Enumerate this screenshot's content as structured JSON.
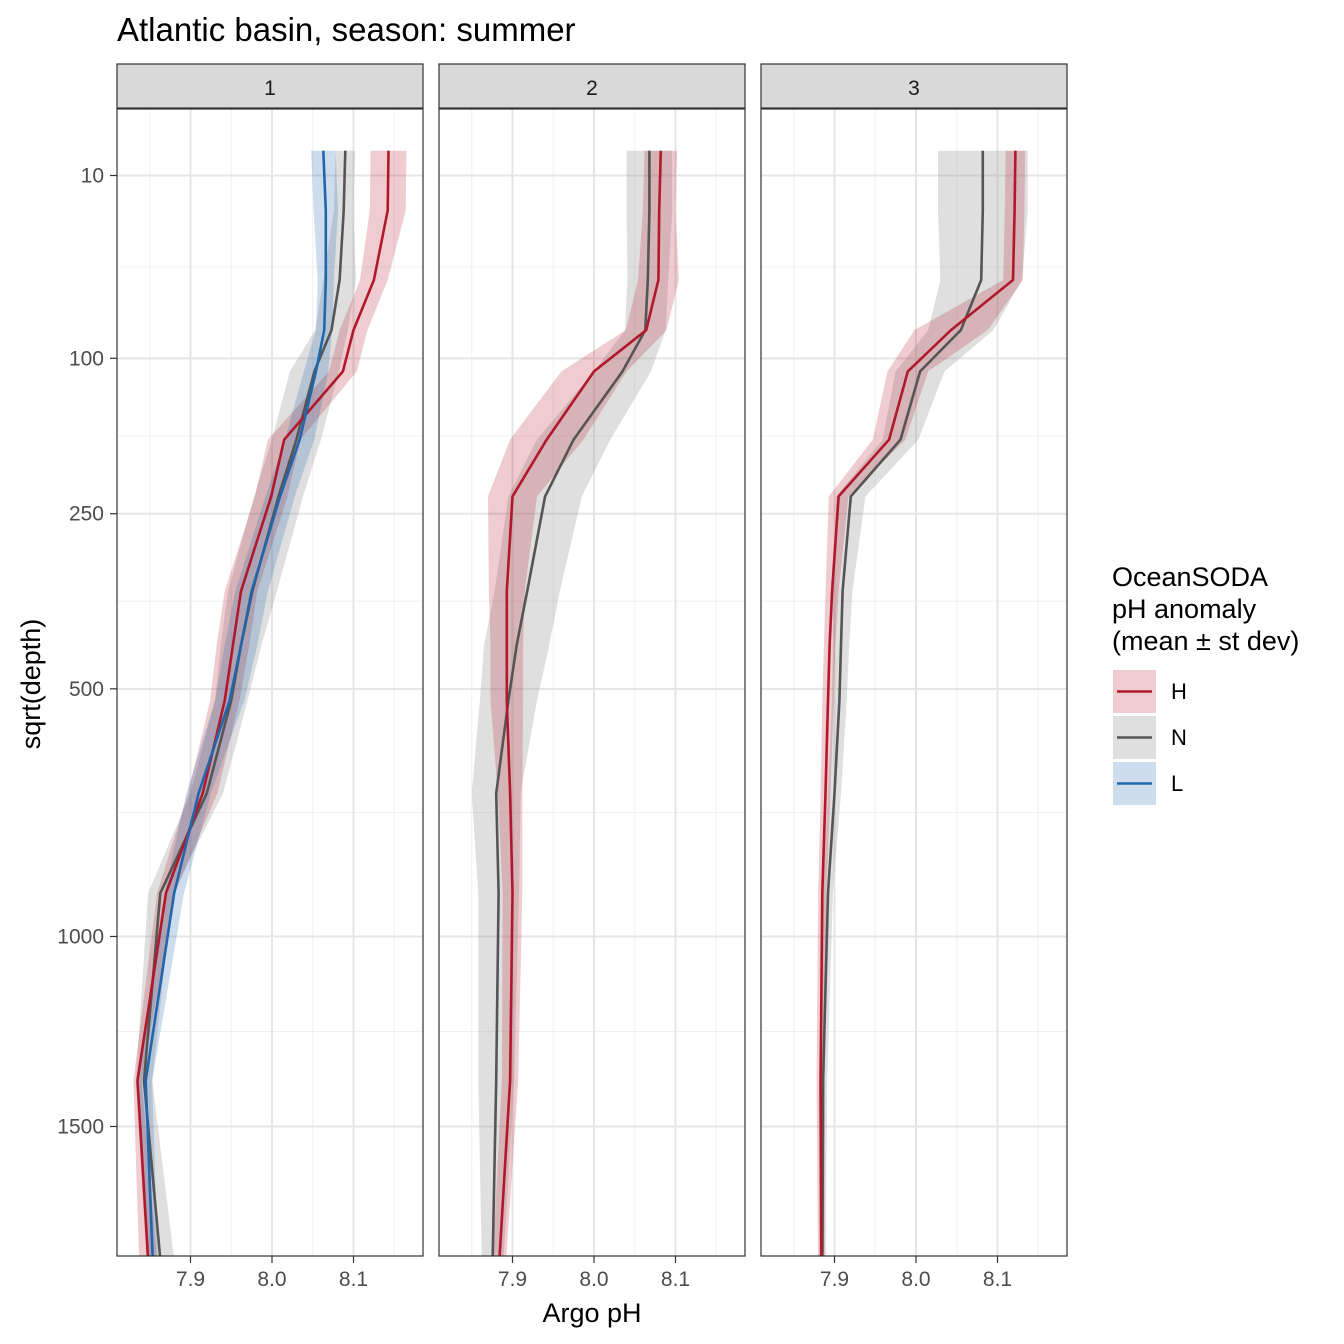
{
  "title": "Atlantic basin, season: summer",
  "xlabel": "Argo pH",
  "ylabel": "sqrt(depth)",
  "legend": {
    "title_lines": [
      "OceanSODA",
      "pH anomaly",
      "(mean ± st dev)"
    ],
    "placement": "right"
  },
  "chart_data": {
    "type": "line",
    "title": "Atlantic basin, season: summer",
    "xlabel": "Argo pH",
    "ylabel": "sqrt(depth)",
    "y_scale": "sqrt",
    "y_reversed": true,
    "xlim": [
      7.82,
      8.19
    ],
    "ylim": [
      2150,
      0
    ],
    "x_ticks": [
      "7.9",
      "8.0",
      "8.1"
    ],
    "x_tick_values": [
      7.9,
      8.0,
      8.1
    ],
    "y_ticks": [
      "10",
      "100",
      "250",
      "500",
      "1000",
      "1500"
    ],
    "y_tick_values": [
      10,
      100,
      250,
      500,
      1000,
      1500
    ],
    "grid": true,
    "series_style": {
      "H": {
        "line": "#b2182b",
        "fill": "#b2182b"
      },
      "N": {
        "line": "#555555",
        "fill": "#9a9a9a"
      },
      "L": {
        "line": "#2166ac",
        "fill": "#2166ac"
      }
    },
    "depths": [
      5,
      20,
      50,
      80,
      110,
      170,
      230,
      350,
      430,
      520,
      690,
      900,
      1370,
      2000
    ],
    "panels": [
      {
        "label": "1",
        "series": [
          {
            "name": "H",
            "mean": [
              8.143,
              8.142,
              8.125,
              8.1,
              8.087,
              8.015,
              7.999,
              7.962,
              7.952,
              7.942,
              7.915,
              7.87,
              7.835,
              7.85
            ],
            "sd": [
              0.022,
              0.022,
              0.017,
              0.017,
              0.017,
              0.02,
              0.02,
              0.02,
              0.02,
              0.018,
              0.018,
              0.011,
              0.005,
              0.012
            ]
          },
          {
            "name": "N",
            "mean": [
              8.09,
              8.088,
              8.083,
              8.073,
              8.052,
              8.03,
              8.008,
              7.976,
              7.962,
              7.95,
              7.92,
              7.863,
              7.843,
              7.866
            ],
            "sd": [
              0.012,
              0.012,
              0.02,
              0.02,
              0.03,
              0.03,
              0.03,
              0.03,
              0.025,
              0.02,
              0.02,
              0.015,
              0.01,
              0.018
            ]
          },
          {
            "name": "L",
            "mean": [
              8.063,
              8.066,
              8.066,
              8.064,
              8.054,
              8.034,
              8.01,
              7.975,
              7.962,
              7.948,
              7.91,
              7.88,
              7.845,
              7.855
            ],
            "sd": [
              0.015,
              0.015,
              0.01,
              0.01,
              0.015,
              0.018,
              0.018,
              0.02,
              0.02,
              0.018,
              0.015,
              0.012,
              0.008,
              0.006
            ]
          }
        ]
      },
      {
        "label": "2",
        "series": [
          {
            "name": "H",
            "mean": [
              8.082,
              8.08,
              8.079,
              8.064,
              8.0,
              7.942,
              7.9,
              7.893,
              7.893,
              7.893,
              7.897,
              7.9,
              7.897,
              7.882
            ],
            "sd": [
              0.02,
              0.02,
              0.025,
              0.025,
              0.04,
              0.045,
              0.03,
              0.022,
              0.02,
              0.02,
              0.015,
              0.012,
              0.01,
              0.008
            ]
          },
          {
            "name": "N",
            "mean": [
              8.068,
              8.068,
              8.066,
              8.063,
              8.035,
              7.975,
              7.94,
              7.918,
              7.905,
              7.895,
              7.88,
              7.883,
              7.88,
              7.875
            ],
            "sd": [
              0.028,
              0.028,
              0.025,
              0.025,
              0.035,
              0.045,
              0.045,
              0.04,
              0.04,
              0.035,
              0.03,
              0.025,
              0.022,
              0.012
            ]
          }
        ]
      },
      {
        "label": "3",
        "series": [
          {
            "name": "H",
            "mean": [
              8.122,
              8.121,
              8.119,
              8.043,
              7.99,
              7.967,
              7.905,
              7.897,
              7.894,
              7.892,
              7.889,
              7.885,
              7.883,
              7.884
            ],
            "sd": [
              0.012,
              0.012,
              0.012,
              0.045,
              0.025,
              0.02,
              0.012,
              0.008,
              0.007,
              0.007,
              0.006,
              0.005,
              0.005,
              0.004
            ]
          },
          {
            "name": "N",
            "mean": [
              8.082,
              8.082,
              8.08,
              8.055,
              8.005,
              7.981,
              7.92,
              7.91,
              7.908,
              7.906,
              7.9,
              7.892,
              7.886,
              7.885
            ],
            "sd": [
              0.055,
              0.055,
              0.05,
              0.04,
              0.03,
              0.022,
              0.018,
              0.012,
              0.01,
              0.009,
              0.008,
              0.006,
              0.005,
              0.004
            ]
          }
        ]
      }
    ]
  }
}
